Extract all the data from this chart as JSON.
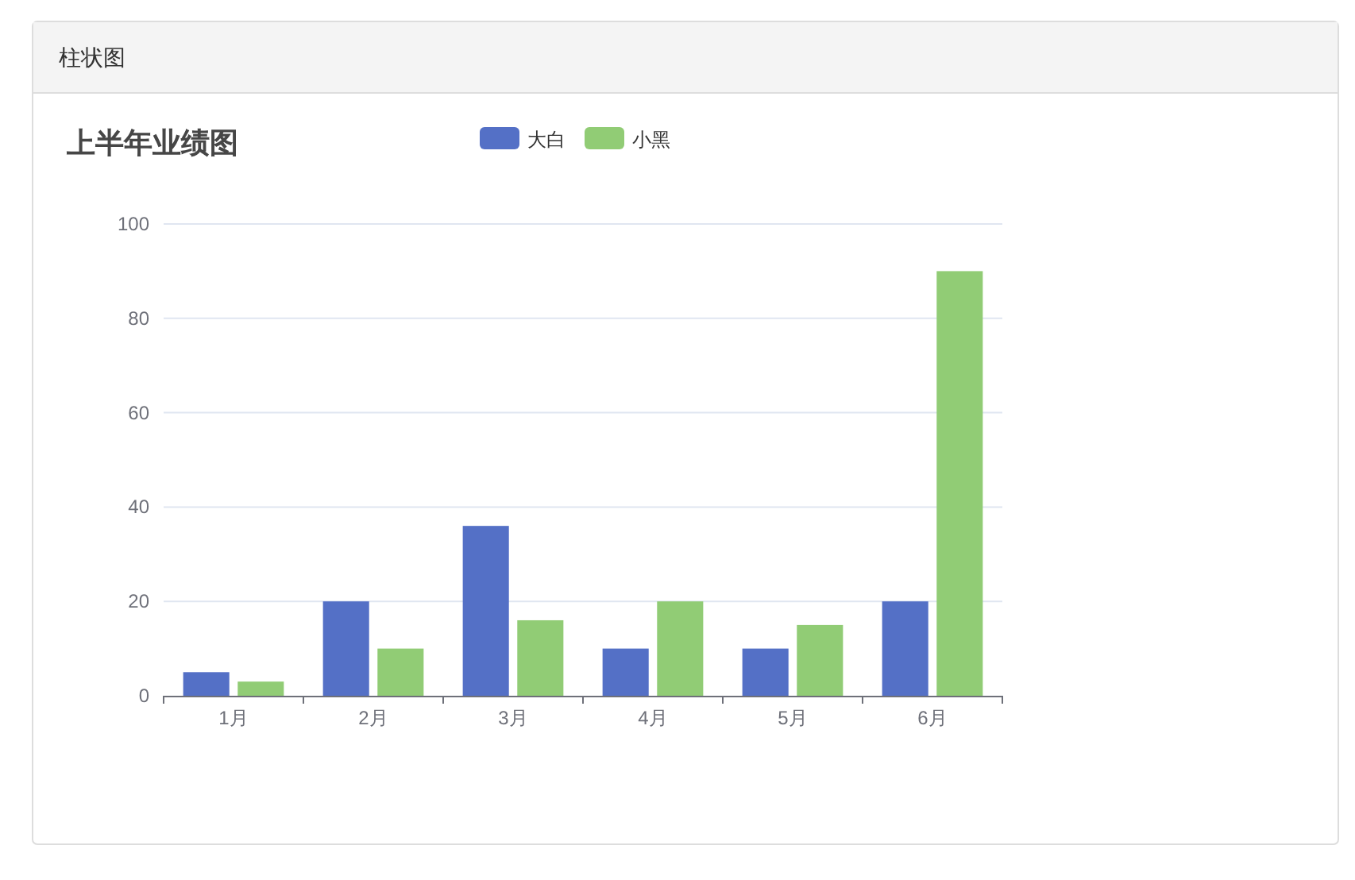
{
  "chart_data": {
    "type": "bar",
    "title": "上半年业绩图",
    "annotations": [
      "柱状图"
    ],
    "categories": [
      "1月",
      "2月",
      "3月",
      "4月",
      "5月",
      "6月"
    ],
    "series": [
      {
        "name": "大白",
        "color": "#5470c6",
        "values": [
          5,
          20,
          36,
          10,
          10,
          20
        ]
      },
      {
        "name": "小黑",
        "color": "#91cc75",
        "values": [
          3,
          10,
          16,
          20,
          15,
          90
        ]
      }
    ],
    "ylim": [
      0,
      100
    ],
    "yticks": [
      0,
      20,
      40,
      60,
      80,
      100
    ],
    "grid": "y",
    "legend": "top"
  }
}
